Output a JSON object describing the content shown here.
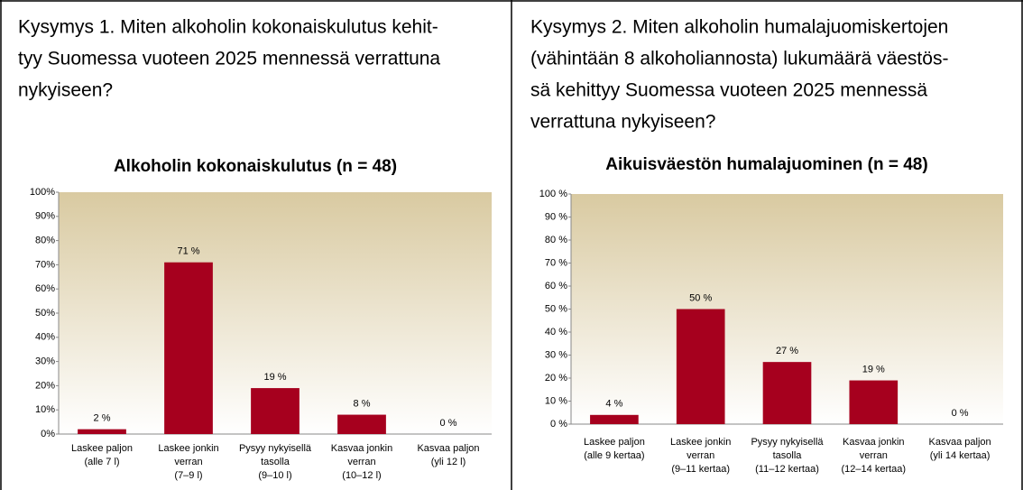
{
  "chart_data": [
    {
      "type": "bar",
      "question": [
        "Kysymys 1. Miten alkoholin kokonaiskulutus kehit-",
        "tyy Suomessa vuoteen 2025 mennessä verrattuna",
        "nykyiseen?"
      ],
      "title": "Alkoholin kokonaiskulutus (n = 48)",
      "categories": [
        [
          "Laskee paljon",
          "(alle 7 l)"
        ],
        [
          "Laskee jonkin",
          "verran",
          "(7–9 l)"
        ],
        [
          "Pysyy nykyisellä",
          "tasolla",
          "(9–10 l)"
        ],
        [
          "Kasvaa jonkin",
          "verran",
          "(10–12 l)"
        ],
        [
          "Kasvaa paljon",
          "(yli 12 l)"
        ]
      ],
      "values": [
        2,
        71,
        19,
        8,
        0
      ],
      "value_labels": [
        "2 %",
        "71 %",
        "19 %",
        "8 %",
        "0 %"
      ],
      "color": "#a6001e",
      "ylim": [
        0,
        100
      ],
      "yticks": [
        {
          "value": 0,
          "label": "0%"
        },
        {
          "value": 10,
          "label": "10%"
        },
        {
          "value": 20,
          "label": "20%"
        },
        {
          "value": 30,
          "label": "30%"
        },
        {
          "value": 40,
          "label": "40%"
        },
        {
          "value": 50,
          "label": "50%"
        },
        {
          "value": 60,
          "label": "60%"
        },
        {
          "value": 70,
          "label": "70%"
        },
        {
          "value": 80,
          "label": "80%"
        },
        {
          "value": 90,
          "label": "90%"
        },
        {
          "value": 100,
          "label": "100%"
        }
      ]
    },
    {
      "type": "bar",
      "question": [
        "Kysymys 2. Miten alkoholin humalajuomiskertojen",
        "(vähintään 8 alkoholiannosta) lukumäärä väestös-",
        "sä kehittyy Suomessa vuoteen 2025 mennessä",
        "verrattuna nykyiseen?"
      ],
      "title": "Aikuisväestön humalajuominen (n = 48)",
      "categories": [
        [
          "Laskee paljon",
          "(alle 9 kertaa)"
        ],
        [
          "Laskee jonkin",
          "verran",
          "(9–11 kertaa)"
        ],
        [
          "Pysyy nykyisellä",
          "tasolla",
          "(11–12 kertaa)"
        ],
        [
          "Kasvaa jonkin",
          "verran",
          "(12–14 kertaa)"
        ],
        [
          "Kasvaa paljon",
          "(yli 14 kertaa)"
        ]
      ],
      "values": [
        4,
        50,
        27,
        19,
        0
      ],
      "value_labels": [
        "4 %",
        "50 %",
        "27 %",
        "19 %",
        "0 %"
      ],
      "color": "#a6001e",
      "ylim": [
        0,
        100
      ],
      "yticks": [
        {
          "value": 0,
          "label": "0 %"
        },
        {
          "value": 10,
          "label": "10 %"
        },
        {
          "value": 20,
          "label": "20 %"
        },
        {
          "value": 30,
          "label": "30 %"
        },
        {
          "value": 40,
          "label": "40 %"
        },
        {
          "value": 50,
          "label": "50 %"
        },
        {
          "value": 60,
          "label": "60 %"
        },
        {
          "value": 70,
          "label": "70 %"
        },
        {
          "value": 80,
          "label": "80 %"
        },
        {
          "value": 90,
          "label": "90 %"
        },
        {
          "value": 100,
          "label": "100 %"
        }
      ]
    }
  ]
}
